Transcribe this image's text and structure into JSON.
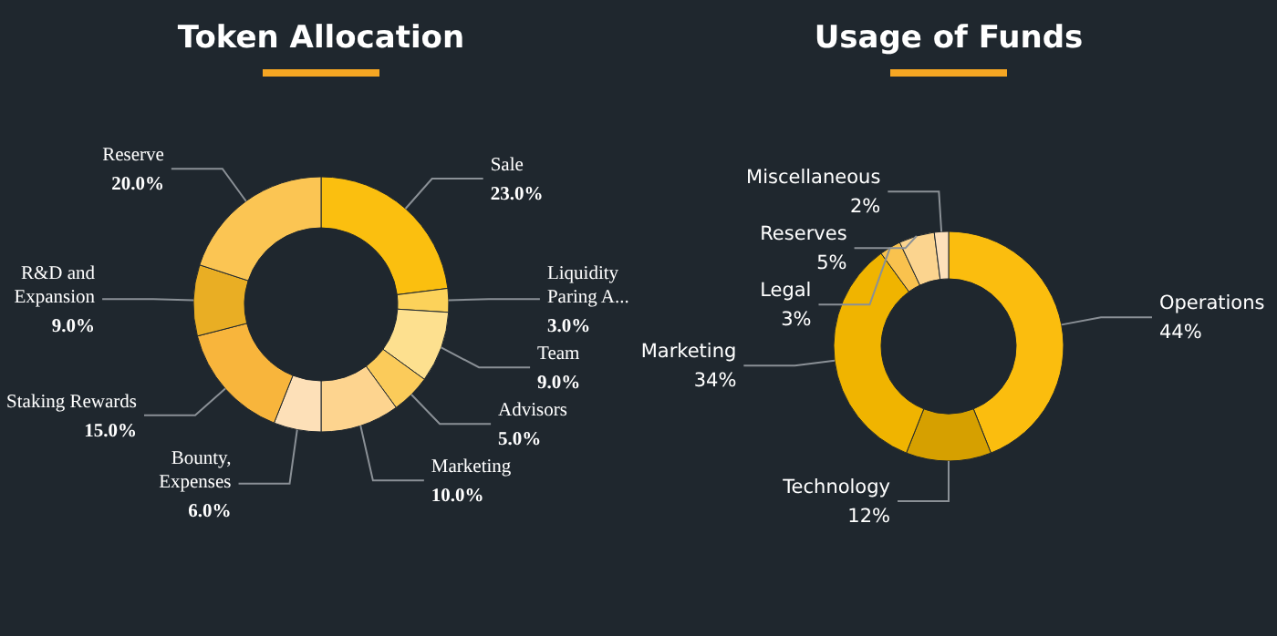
{
  "chart_data": [
    {
      "type": "donut",
      "title": "Token Allocation",
      "categories": [
        "Sale",
        "Liquidity\nParing A...",
        "Team",
        "Advisors",
        "Marketing",
        "Bounty,\nExpenses",
        "Staking Rewards",
        "R&D and\nExpansion",
        "Reserve"
      ],
      "values": [
        23,
        3,
        9,
        5,
        10,
        6,
        15,
        9,
        20
      ],
      "value_labels": [
        "23.0%",
        "3.0%",
        "9.0%",
        "5.0%",
        "10.0%",
        "6.0%",
        "15.0%",
        "9.0%",
        "20.0%"
      ],
      "colors": [
        "#fbbf0f",
        "#fcd25a",
        "#fde08f",
        "#fbcb5a",
        "#fdd48f",
        "#fde0b8",
        "#f8b53c",
        "#e9ae24",
        "#fbc553"
      ]
    },
    {
      "type": "donut",
      "title": "Usage of Funds",
      "categories": [
        "Operations",
        "Technology",
        "Marketing",
        "Legal",
        "Reserves",
        "Miscellaneous"
      ],
      "values": [
        44,
        12,
        34,
        3,
        5,
        2
      ],
      "value_labels": [
        "44%",
        "12%",
        "34%",
        "3%",
        "5%",
        "2%"
      ],
      "colors": [
        "#fbbd0e",
        "#d6a000",
        "#f0b400",
        "#f9c24e",
        "#fbd48f",
        "#fde0bb"
      ]
    }
  ]
}
